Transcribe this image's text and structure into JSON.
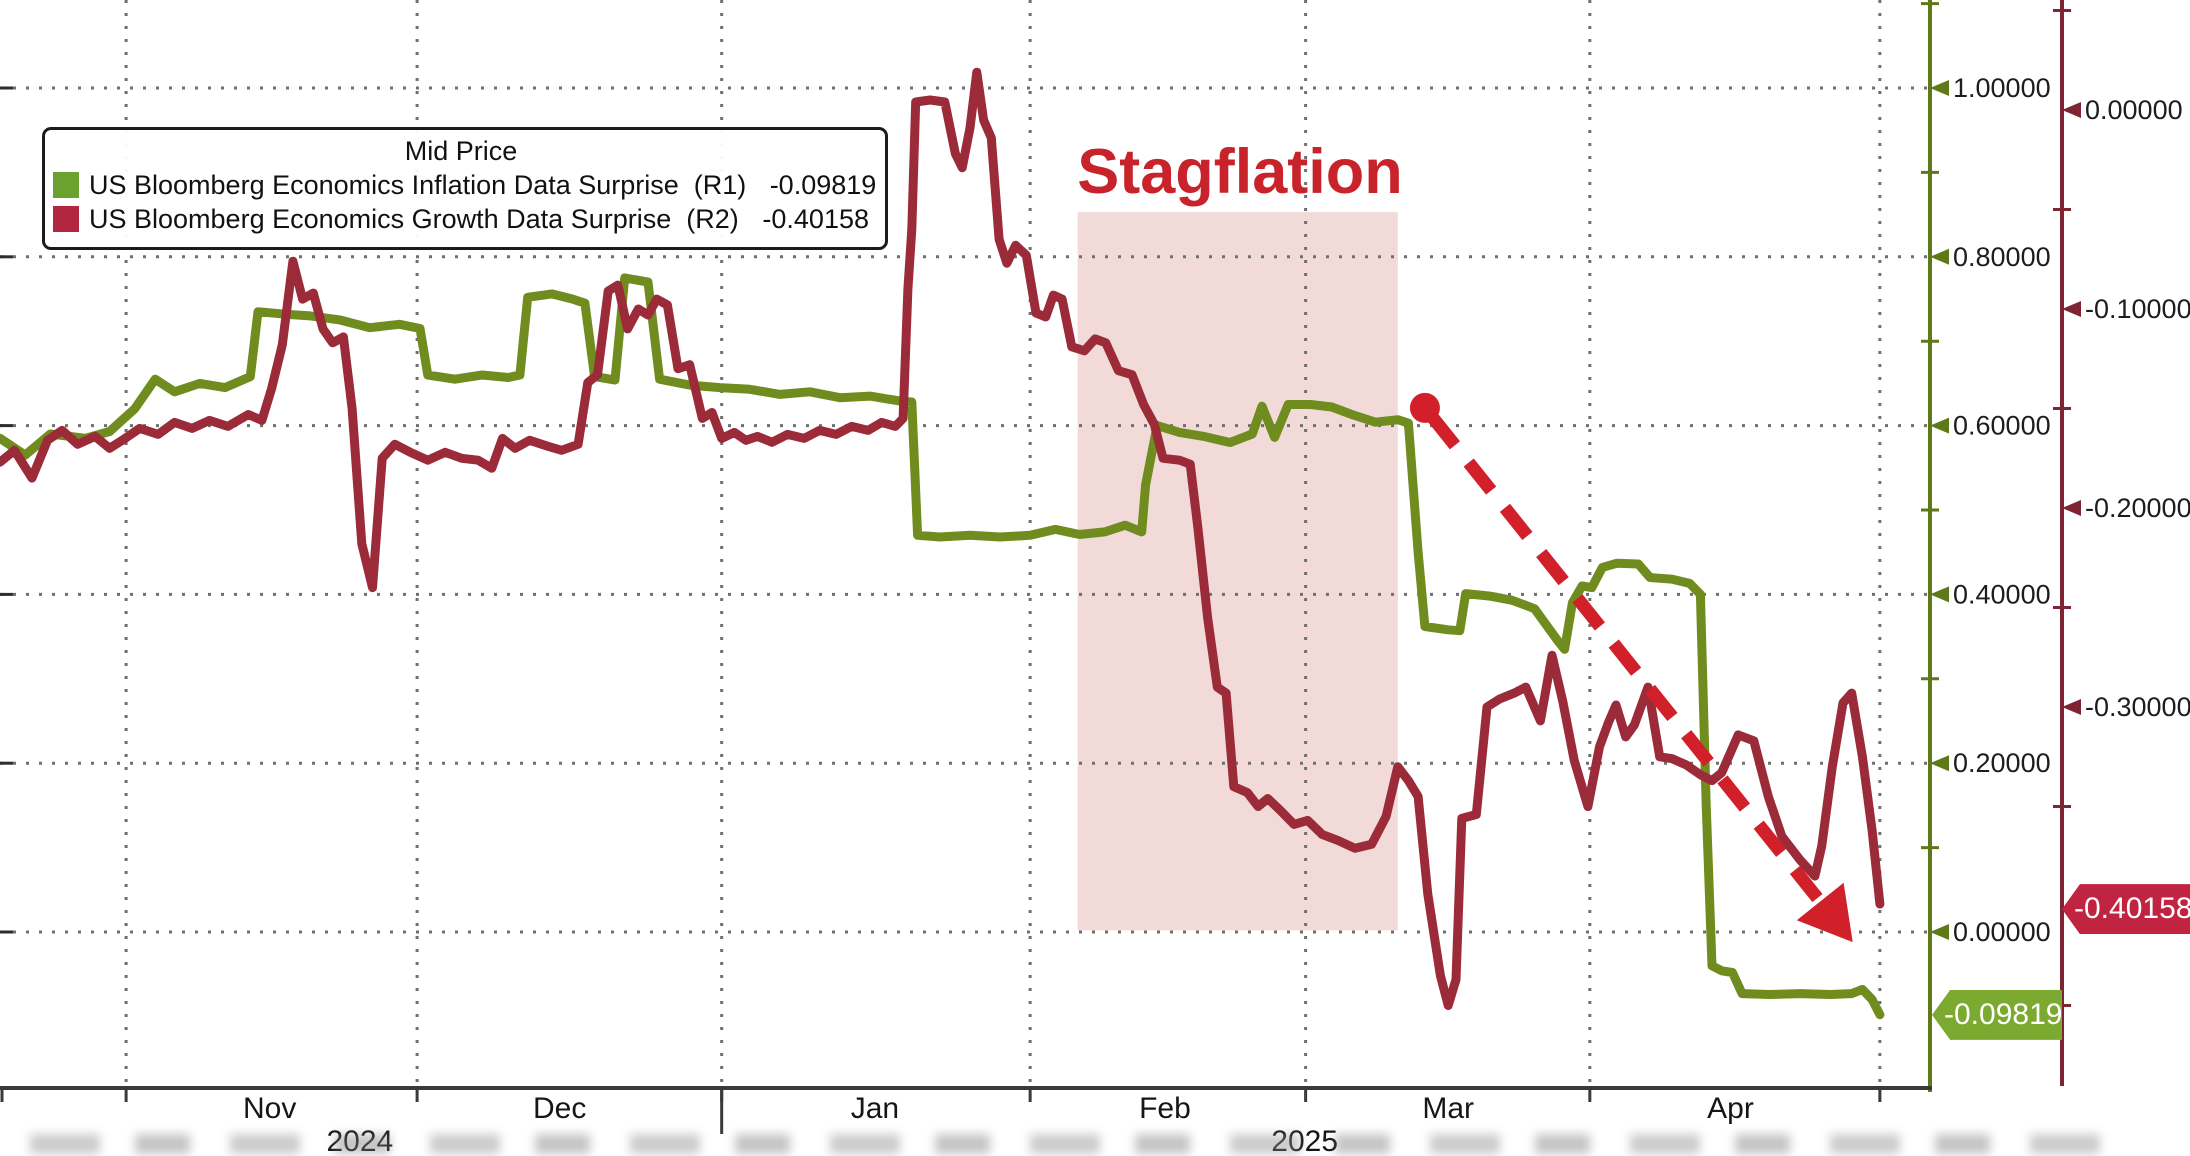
{
  "chart_data": {
    "type": "line",
    "title": "",
    "legend": {
      "title": "Mid Price",
      "series": [
        {
          "label": "US Bloomberg Economics Inflation Data Surprise  (R1)",
          "value": "-0.09819",
          "swatch_color": "#6aa12f"
        },
        {
          "label": "US Bloomberg Economics Growth Data Surprise  (R2)",
          "value": "-0.40158",
          "swatch_color": "#b2273f"
        }
      ]
    },
    "annotation": {
      "text": "Stagflation",
      "color": "#c8222a"
    },
    "x_axis": {
      "unit": "days-from-left-edge",
      "boundaries": [
        13,
        43,
        74.4,
        106.2,
        134.6,
        163.9,
        193.8
      ],
      "year_separator": 74.4,
      "month_labels": [
        {
          "text": "Nov",
          "day": 27.8
        },
        {
          "text": "Dec",
          "day": 57.7
        },
        {
          "text": "Jan",
          "day": 90.2
        },
        {
          "text": "Feb",
          "day": 120.1
        },
        {
          "text": "Mar",
          "day": 149.3
        },
        {
          "text": "Apr",
          "day": 178.4
        }
      ],
      "year_labels": [
        {
          "text": "2024",
          "day": 37.1
        },
        {
          "text": "2025",
          "day": 134.5
        }
      ]
    },
    "axes": {
      "r1": {
        "side": "inner-right",
        "color": "#5e7a18",
        "range": [
          -0.185,
          1.104
        ],
        "ticks": [
          {
            "label": "1.00000",
            "value": 1.0
          },
          {
            "label": "0.80000",
            "value": 0.8
          },
          {
            "label": "0.60000",
            "value": 0.6
          },
          {
            "label": "0.40000",
            "value": 0.4
          },
          {
            "label": "0.20000",
            "value": 0.2
          },
          {
            "label": "0.00000",
            "value": 0.0
          }
        ],
        "minor_ticks": [
          1.1,
          0.9,
          0.7,
          0.5,
          0.3,
          0.1
        ]
      },
      "r2": {
        "side": "outer-right",
        "color": "#7e2433",
        "range": [
          -0.491,
          0.055
        ],
        "ticks": [
          {
            "label": "0.00000",
            "value": 0.0
          },
          {
            "label": "-0.10000",
            "value": -0.1
          },
          {
            "label": "-0.20000",
            "value": -0.2
          },
          {
            "label": "-0.30000",
            "value": -0.3
          }
        ],
        "minor_ticks": [
          0.05,
          -0.05,
          -0.15,
          -0.25,
          -0.35,
          -0.45
        ]
      }
    },
    "shaded_region": {
      "t1": 111.1,
      "t2": 144.1,
      "v_top": 0.853,
      "v_bottom": 0.002,
      "color": "#d9908c",
      "opacity": 0.33
    },
    "trend_arrow": {
      "start": [
        146.9,
        0.621
      ],
      "end": [
        191.0,
        -0.012
      ],
      "axis": "R1",
      "color": "#d2202a",
      "style": "dashed"
    },
    "price_badges": [
      {
        "text": "-0.40158",
        "axis": "R2",
        "color": "#c02441"
      },
      {
        "text": "-0.09819",
        "axis": "R1",
        "color": "#7caa30"
      }
    ],
    "footer": {
      "blurred": true
    },
    "series": [
      {
        "name": "US Bloomberg Economics Inflation Data Surprise",
        "axis": "R1",
        "color": "#708c1f",
        "data_name": "inflation-series-line",
        "points": [
          [
            0,
            0.585
          ],
          [
            2.6,
            0.565
          ],
          [
            5.2,
            0.59
          ],
          [
            8.8,
            0.585
          ],
          [
            11.3,
            0.593
          ],
          [
            13.9,
            0.62
          ],
          [
            16,
            0.655
          ],
          [
            18,
            0.64
          ],
          [
            20.6,
            0.65
          ],
          [
            23.2,
            0.645
          ],
          [
            25.8,
            0.658
          ],
          [
            26.6,
            0.735
          ],
          [
            29.4,
            0.732
          ],
          [
            32,
            0.73
          ],
          [
            35.1,
            0.725
          ],
          [
            38.1,
            0.716
          ],
          [
            41.2,
            0.72
          ],
          [
            43.3,
            0.715
          ],
          [
            44.1,
            0.66
          ],
          [
            46.9,
            0.655
          ],
          [
            49.7,
            0.66
          ],
          [
            52.4,
            0.657
          ],
          [
            53.6,
            0.66
          ],
          [
            54.4,
            0.752
          ],
          [
            56.9,
            0.756
          ],
          [
            59,
            0.75
          ],
          [
            60.3,
            0.745
          ],
          [
            61.3,
            0.658
          ],
          [
            63.4,
            0.654
          ],
          [
            64.4,
            0.775
          ],
          [
            66.8,
            0.77
          ],
          [
            68,
            0.655
          ],
          [
            71.1,
            0.648
          ],
          [
            74.2,
            0.645
          ],
          [
            77.3,
            0.643
          ],
          [
            80.4,
            0.637
          ],
          [
            83.5,
            0.64
          ],
          [
            86.6,
            0.633
          ],
          [
            89.7,
            0.635
          ],
          [
            92.8,
            0.629
          ],
          [
            94,
            0.628
          ],
          [
            94.6,
            0.47
          ],
          [
            96.9,
            0.468
          ],
          [
            100,
            0.47
          ],
          [
            103.1,
            0.468
          ],
          [
            106.2,
            0.47
          ],
          [
            108.8,
            0.477
          ],
          [
            111.3,
            0.471
          ],
          [
            113.9,
            0.474
          ],
          [
            116,
            0.482
          ],
          [
            117.7,
            0.474
          ],
          [
            118.1,
            0.53
          ],
          [
            119.3,
            0.6
          ],
          [
            121.6,
            0.592
          ],
          [
            124.2,
            0.587
          ],
          [
            126.8,
            0.58
          ],
          [
            129.1,
            0.59
          ],
          [
            130.1,
            0.623
          ],
          [
            131.4,
            0.586
          ],
          [
            132.8,
            0.625
          ],
          [
            135.1,
            0.625
          ],
          [
            137.3,
            0.622
          ],
          [
            139.4,
            0.613
          ],
          [
            141.8,
            0.604
          ],
          [
            144.1,
            0.607
          ],
          [
            145.2,
            0.603
          ],
          [
            146.2,
            0.45
          ],
          [
            146.9,
            0.362
          ],
          [
            149.3,
            0.358
          ],
          [
            150.5,
            0.357
          ],
          [
            151.1,
            0.401
          ],
          [
            153.6,
            0.398
          ],
          [
            155.9,
            0.393
          ],
          [
            158.2,
            0.383
          ],
          [
            160.6,
            0.345
          ],
          [
            161.3,
            0.335
          ],
          [
            162.1,
            0.39
          ],
          [
            163.1,
            0.41
          ],
          [
            164.1,
            0.408
          ],
          [
            165.2,
            0.432
          ],
          [
            166.7,
            0.437
          ],
          [
            168.9,
            0.436
          ],
          [
            170.1,
            0.42
          ],
          [
            172.4,
            0.418
          ],
          [
            174.2,
            0.413
          ],
          [
            175.3,
            0.4
          ],
          [
            175.9,
            0.15
          ],
          [
            176.5,
            -0.04
          ],
          [
            177.5,
            -0.046
          ],
          [
            178.6,
            -0.048
          ],
          [
            179.6,
            -0.073
          ],
          [
            182.5,
            -0.074
          ],
          [
            185.6,
            -0.073
          ],
          [
            188.7,
            -0.074
          ],
          [
            190.9,
            -0.073
          ],
          [
            192,
            -0.068
          ],
          [
            193,
            -0.08
          ],
          [
            193.8,
            -0.098
          ]
        ]
      },
      {
        "name": "US Bloomberg Economics Growth Data Surprise",
        "axis": "R2",
        "color": "#9c2b3a",
        "data_name": "growth-series-line",
        "points": [
          [
            0,
            -0.177
          ],
          [
            1.5,
            -0.171
          ],
          [
            3.3,
            -0.185
          ],
          [
            4.9,
            -0.166
          ],
          [
            6.4,
            -0.161
          ],
          [
            8,
            -0.168
          ],
          [
            9.8,
            -0.164
          ],
          [
            11.3,
            -0.17
          ],
          [
            12.9,
            -0.165
          ],
          [
            14.4,
            -0.16
          ],
          [
            16.3,
            -0.163
          ],
          [
            18,
            -0.157
          ],
          [
            19.8,
            -0.16
          ],
          [
            21.6,
            -0.156
          ],
          [
            23.5,
            -0.159
          ],
          [
            25.6,
            -0.153
          ],
          [
            27,
            -0.156
          ],
          [
            28,
            -0.14
          ],
          [
            29.1,
            -0.118
          ],
          [
            30.2,
            -0.076
          ],
          [
            31.2,
            -0.095
          ],
          [
            32.3,
            -0.092
          ],
          [
            33.3,
            -0.11
          ],
          [
            34.3,
            -0.117
          ],
          [
            35.4,
            -0.114
          ],
          [
            36.3,
            -0.15
          ],
          [
            37.3,
            -0.218
          ],
          [
            38.4,
            -0.24
          ],
          [
            39.4,
            -0.175
          ],
          [
            40.7,
            -0.168
          ],
          [
            42.3,
            -0.172
          ],
          [
            44.1,
            -0.176
          ],
          [
            45.9,
            -0.172
          ],
          [
            47.6,
            -0.175
          ],
          [
            49.3,
            -0.176
          ],
          [
            50.7,
            -0.18
          ],
          [
            51.8,
            -0.165
          ],
          [
            53.1,
            -0.17
          ],
          [
            54.6,
            -0.166
          ],
          [
            56.5,
            -0.169
          ],
          [
            57.9,
            -0.171
          ],
          [
            59.6,
            -0.168
          ],
          [
            60.6,
            -0.137
          ],
          [
            61.6,
            -0.133
          ],
          [
            62.7,
            -0.091
          ],
          [
            63.7,
            -0.088
          ],
          [
            64.7,
            -0.11
          ],
          [
            65.8,
            -0.1
          ],
          [
            66.8,
            -0.103
          ],
          [
            67.7,
            -0.095
          ],
          [
            68.8,
            -0.098
          ],
          [
            69.9,
            -0.13
          ],
          [
            71.1,
            -0.128
          ],
          [
            72.4,
            -0.155
          ],
          [
            73.4,
            -0.152
          ],
          [
            74.4,
            -0.165
          ],
          [
            75.7,
            -0.162
          ],
          [
            76.9,
            -0.166
          ],
          [
            78.1,
            -0.164
          ],
          [
            79.6,
            -0.167
          ],
          [
            81.2,
            -0.163
          ],
          [
            82.9,
            -0.165
          ],
          [
            84.5,
            -0.161
          ],
          [
            86.2,
            -0.163
          ],
          [
            87.8,
            -0.159
          ],
          [
            89.5,
            -0.161
          ],
          [
            90.9,
            -0.157
          ],
          [
            92.3,
            -0.159
          ],
          [
            93.1,
            -0.155
          ],
          [
            93.6,
            -0.09
          ],
          [
            94,
            -0.06
          ],
          [
            94.4,
            0.004
          ],
          [
            95.9,
            0.005
          ],
          [
            97.4,
            0.004
          ],
          [
            98.5,
            -0.022
          ],
          [
            99.2,
            -0.029
          ],
          [
            100,
            -0.009
          ],
          [
            100.7,
            0.019
          ],
          [
            101.4,
            -0.005
          ],
          [
            102.2,
            -0.014
          ],
          [
            103,
            -0.065
          ],
          [
            103.8,
            -0.077
          ],
          [
            104.7,
            -0.068
          ],
          [
            105.8,
            -0.073
          ],
          [
            106.8,
            -0.102
          ],
          [
            107.8,
            -0.104
          ],
          [
            108.6,
            -0.093
          ],
          [
            109.5,
            -0.095
          ],
          [
            110.5,
            -0.119
          ],
          [
            111.8,
            -0.121
          ],
          [
            112.9,
            -0.115
          ],
          [
            114,
            -0.117
          ],
          [
            115.3,
            -0.131
          ],
          [
            116.7,
            -0.133
          ],
          [
            117.9,
            -0.148
          ],
          [
            119,
            -0.158
          ],
          [
            119.9,
            -0.175
          ],
          [
            121.6,
            -0.176
          ],
          [
            122.7,
            -0.178
          ],
          [
            123.5,
            -0.21
          ],
          [
            124.5,
            -0.255
          ],
          [
            125.5,
            -0.29
          ],
          [
            126.4,
            -0.293
          ],
          [
            127.2,
            -0.34
          ],
          [
            128.6,
            -0.343
          ],
          [
            129.7,
            -0.35
          ],
          [
            130.7,
            -0.346
          ],
          [
            132,
            -0.352
          ],
          [
            133.4,
            -0.359
          ],
          [
            134.8,
            -0.357
          ],
          [
            136.3,
            -0.364
          ],
          [
            137.9,
            -0.367
          ],
          [
            139.7,
            -0.371
          ],
          [
            141.4,
            -0.369
          ],
          [
            142.9,
            -0.355
          ],
          [
            144.1,
            -0.33
          ],
          [
            145.2,
            -0.337
          ],
          [
            146.2,
            -0.345
          ],
          [
            147.2,
            -0.394
          ],
          [
            148.5,
            -0.435
          ],
          [
            149.3,
            -0.45
          ],
          [
            150.1,
            -0.437
          ],
          [
            150.7,
            -0.356
          ],
          [
            152.2,
            -0.354
          ],
          [
            153.3,
            -0.3
          ],
          [
            154.6,
            -0.296
          ],
          [
            156.1,
            -0.293
          ],
          [
            157.3,
            -0.29
          ],
          [
            158.8,
            -0.307
          ],
          [
            160,
            -0.274
          ],
          [
            161.1,
            -0.297
          ],
          [
            162.3,
            -0.327
          ],
          [
            163.7,
            -0.35
          ],
          [
            164.9,
            -0.32
          ],
          [
            165.8,
            -0.308
          ],
          [
            166.6,
            -0.299
          ],
          [
            167.6,
            -0.315
          ],
          [
            168.5,
            -0.309
          ],
          [
            169.9,
            -0.29
          ],
          [
            171.1,
            -0.325
          ],
          [
            172.4,
            -0.326
          ],
          [
            173.8,
            -0.329
          ],
          [
            175.3,
            -0.334
          ],
          [
            176.5,
            -0.337
          ],
          [
            177.5,
            -0.333
          ],
          [
            179.2,
            -0.314
          ],
          [
            180.8,
            -0.317
          ],
          [
            182.3,
            -0.345
          ],
          [
            183.7,
            -0.365
          ],
          [
            185.6,
            -0.377
          ],
          [
            187.1,
            -0.385
          ],
          [
            187.8,
            -0.37
          ],
          [
            188.9,
            -0.33
          ],
          [
            190,
            -0.298
          ],
          [
            190.9,
            -0.293
          ],
          [
            192,
            -0.325
          ],
          [
            193,
            -0.362
          ],
          [
            193.8,
            -0.399
          ]
        ]
      }
    ]
  }
}
